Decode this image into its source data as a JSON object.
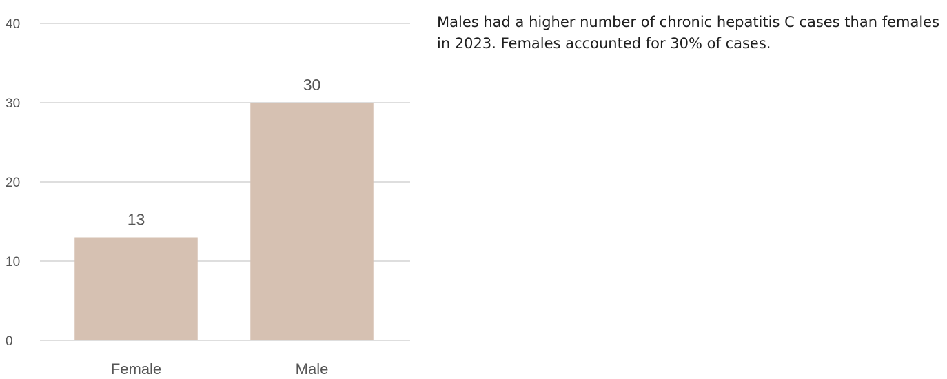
{
  "chart_data": {
    "type": "bar",
    "categories": [
      "Female",
      "Male"
    ],
    "values": [
      13,
      30
    ],
    "data_labels": [
      "13",
      "30"
    ],
    "yticks": [
      0,
      10,
      20,
      30,
      40
    ],
    "ylim": [
      0,
      40
    ],
    "grid": true,
    "bar_color": "#d6c1b2",
    "title": "",
    "xlabel": "",
    "ylabel": ""
  },
  "description": "Males had a higher number of chronic hepatitis C cases than females in 2023. Females accounted for 30% of cases."
}
